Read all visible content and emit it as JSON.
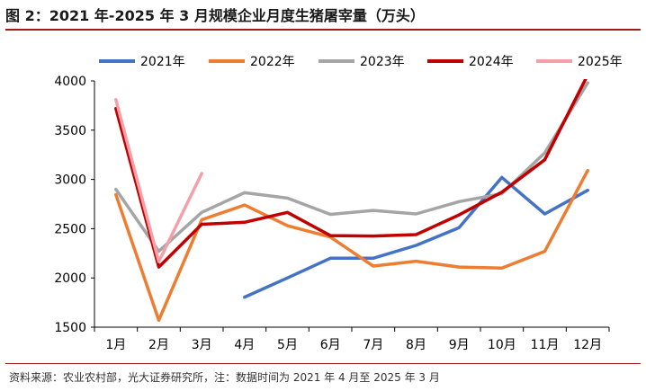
{
  "title": "图 2：2021 年-2025 年 3 月规模企业月度生猪屠宰量（万头）",
  "source": "资料来源：农业农村部，光大证券研究所，注：数据时间为 2021 年 4 月至 2025 年 3 月",
  "chart_data": {
    "type": "line",
    "title": "图 2：2021 年-2025 年 3 月规模企业月度生猪屠宰量（万头）",
    "xlabel": "",
    "ylabel": "",
    "ylim": [
      1500,
      4000
    ],
    "yticks": [
      1500,
      2000,
      2500,
      3000,
      3500,
      4000
    ],
    "grid": false,
    "legend": "top",
    "categories": [
      "1月",
      "2月",
      "3月",
      "4月",
      "5月",
      "6月",
      "7月",
      "8月",
      "9月",
      "10月",
      "11月",
      "12月"
    ],
    "series": [
      {
        "name": "2021年",
        "color": "#4472C4",
        "values": [
          null,
          null,
          null,
          1805,
          2000,
          2200,
          2200,
          2330,
          2510,
          3020,
          2650,
          2890
        ]
      },
      {
        "name": "2022年",
        "color": "#ED7D31",
        "values": [
          2845,
          1570,
          2590,
          2740,
          2530,
          2415,
          2120,
          2170,
          2110,
          2100,
          2270,
          3090
        ]
      },
      {
        "name": "2023年",
        "color": "#A5A5A5",
        "values": [
          2900,
          2270,
          2665,
          2865,
          2810,
          2645,
          2685,
          2650,
          2775,
          2855,
          3270,
          3980
        ]
      },
      {
        "name": "2024年",
        "color": "#C00000",
        "values": [
          3720,
          2110,
          2545,
          2565,
          2665,
          2430,
          2425,
          2440,
          2640,
          2870,
          3200,
          4060
        ]
      },
      {
        "name": "2025年",
        "color": "#F4A0A8",
        "values": [
          3810,
          2165,
          3060,
          null,
          null,
          null,
          null,
          null,
          null,
          null,
          null,
          null
        ]
      }
    ]
  }
}
